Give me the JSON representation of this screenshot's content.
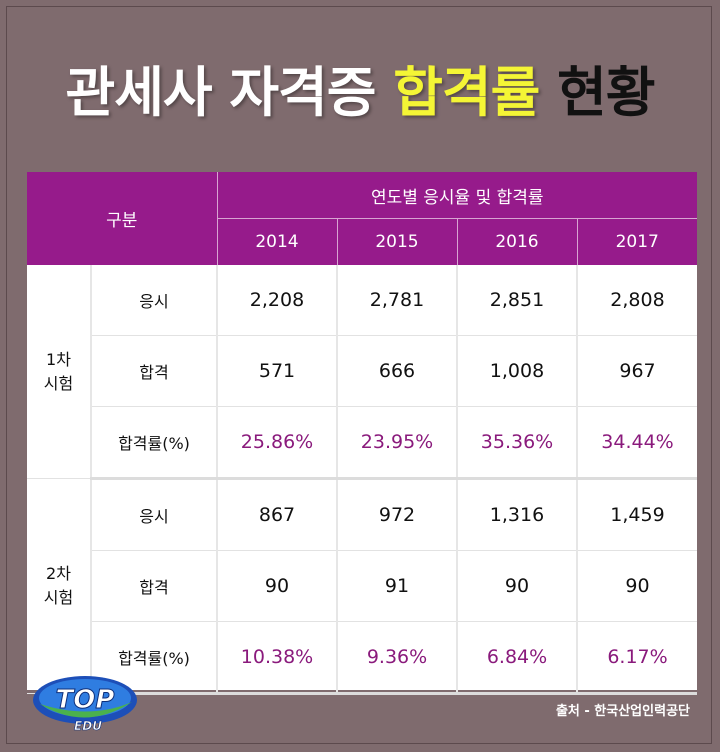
{
  "title": {
    "part1": "관세사 자격증",
    "part2": "합격률",
    "part3": "현황"
  },
  "chart_data": {
    "type": "table",
    "header_group": "구분",
    "header_years_label": "연도별 응시율 및 합격률",
    "years": [
      "2014",
      "2015",
      "2016",
      "2017"
    ],
    "sections": [
      {
        "name": "1차\n시험",
        "rows": [
          {
            "label": "응시",
            "values": [
              "2,208",
              "2,781",
              "2,851",
              "2,808"
            ]
          },
          {
            "label": "합격",
            "values": [
              "571",
              "666",
              "1,008",
              "967"
            ]
          },
          {
            "label": "합격률(%)",
            "values": [
              "25.86%",
              "23.95%",
              "35.36%",
              "34.44%"
            ]
          }
        ]
      },
      {
        "name": "2차\n시험",
        "rows": [
          {
            "label": "응시",
            "values": [
              "867",
              "972",
              "1,316",
              "1,459"
            ]
          },
          {
            "label": "합격",
            "values": [
              "90",
              "91",
              "90",
              "90"
            ]
          },
          {
            "label": "합격률(%)",
            "values": [
              "10.38%",
              "9.36%",
              "6.84%",
              "6.17%"
            ]
          }
        ]
      }
    ]
  },
  "source": "출처 - 한국산업인력공단",
  "logo": {
    "top": "TOP",
    "bottom": "EDU"
  },
  "colors": {
    "background": "#7f6b6e",
    "header": "#961b8b",
    "highlight": "#f4f535",
    "rate_text": "#8a1a7c"
  }
}
